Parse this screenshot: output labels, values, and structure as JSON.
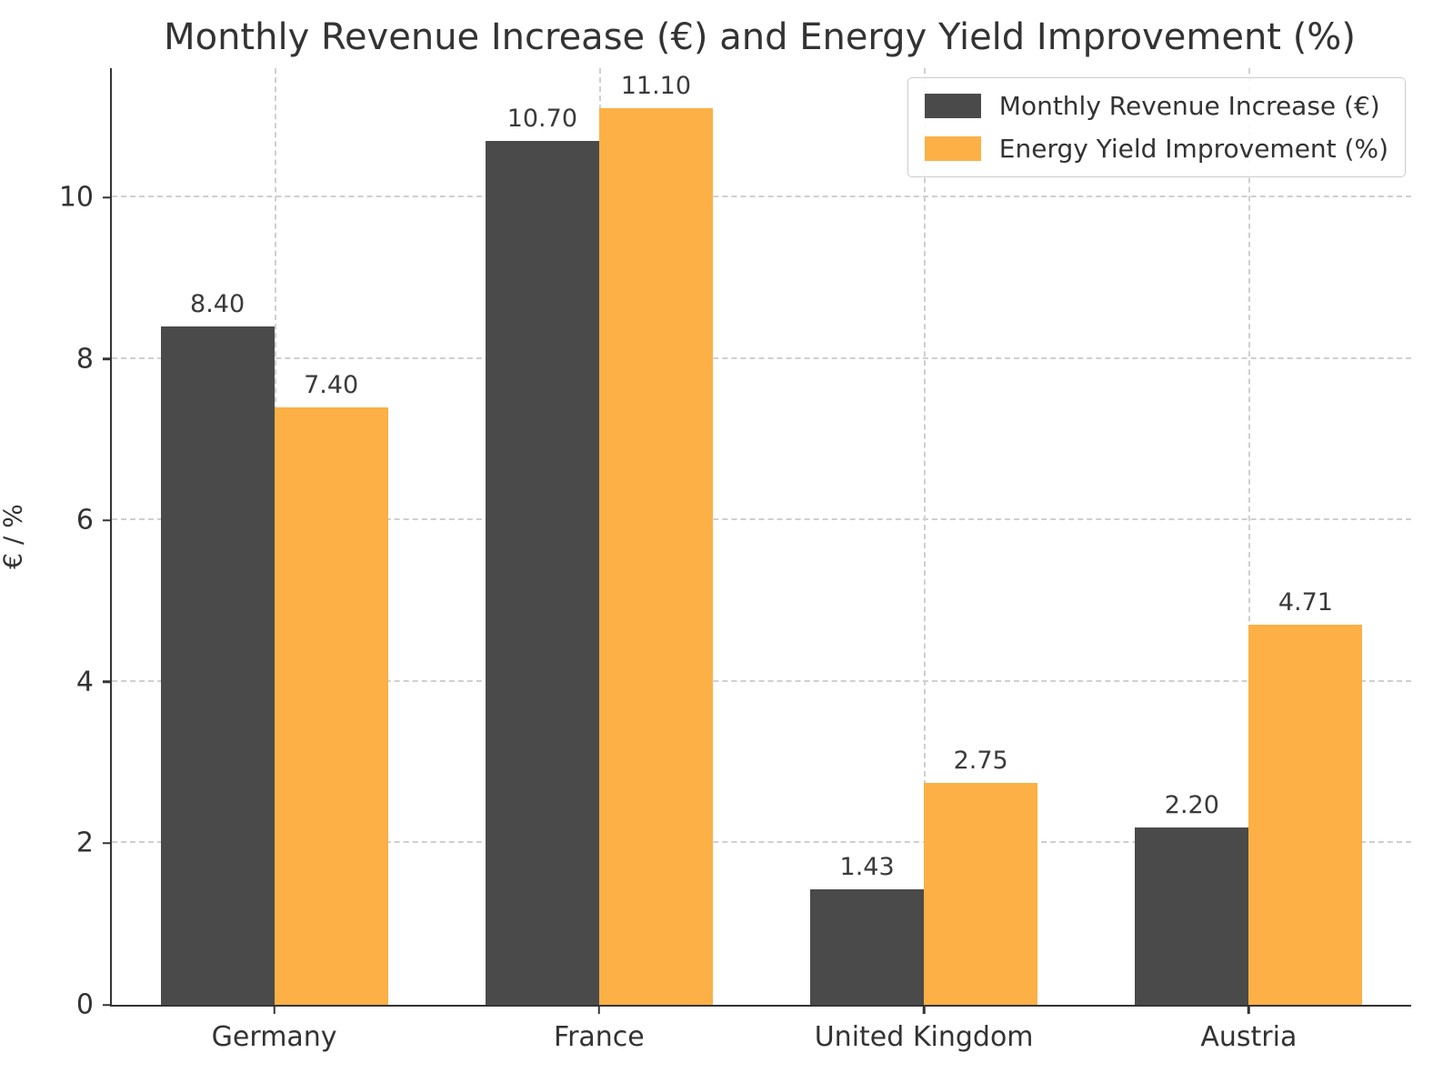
{
  "title": "Monthly Revenue Increase (€) and Energy Yield Improvement (%)",
  "axes": {
    "ylabel": "€ / %",
    "yticks": [
      0,
      2,
      4,
      6,
      8,
      10
    ],
    "xtick_labels": [
      "Germany",
      "France",
      "United Kingdom",
      "Austria"
    ]
  },
  "colors": {
    "revenue_bar": "#4a4a4a",
    "yield_bar": "#fcb045",
    "grid": "#cfcfcf",
    "spine": "#333333",
    "text": "#333333"
  },
  "chart_data": {
    "type": "bar",
    "categories": [
      "Germany",
      "France",
      "United Kingdom",
      "Austria"
    ],
    "series": [
      {
        "name": "Monthly Revenue Increase (€)",
        "color": "#4a4a4a",
        "values": [
          8.4,
          10.7,
          1.43,
          2.2
        ]
      },
      {
        "name": "Energy Yield Improvement (%)",
        "color": "#fcb045",
        "values": [
          7.4,
          11.1,
          2.75,
          4.71
        ]
      }
    ],
    "value_labels": [
      [
        "8.40",
        "10.70",
        "1.43",
        "2.20"
      ],
      [
        "7.40",
        "11.10",
        "2.75",
        "4.71"
      ]
    ],
    "title": "Monthly Revenue Increase (€) and Energy Yield Improvement (%)",
    "xlabel": "",
    "ylabel": "€ / %",
    "ylim": [
      0,
      11.6
    ],
    "yticks": [
      0,
      2,
      4,
      6,
      8,
      10
    ],
    "grid": true,
    "grid_style": "dashed",
    "legend_position": "upper right",
    "bar_width_fraction": 0.35
  }
}
